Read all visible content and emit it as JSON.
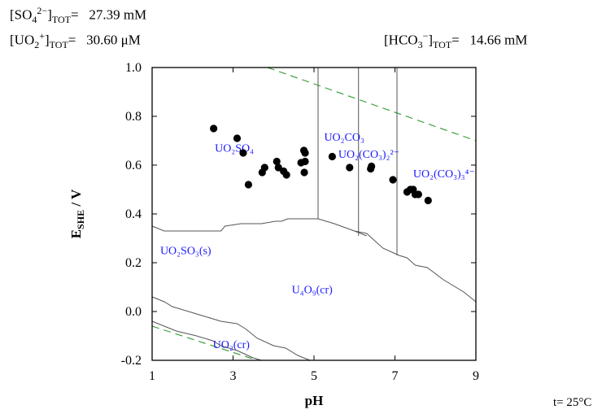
{
  "header": {
    "sulfate_total": "27.39 mM",
    "uranyl_total": "30.60 μM",
    "bicarbonate_total": "14.66 mM",
    "temperature": "25°C"
  },
  "colors": {
    "species_label": "#1a1aff",
    "dashed_water_lines": "#2e9b2e",
    "boundaries": "#555555",
    "points": "#000000"
  },
  "chart_data": {
    "type": "scatter",
    "xlabel": "pH",
    "ylabel": "E_SHE / V",
    "xlim": [
      1,
      9
    ],
    "ylim": [
      -0.2,
      1.0
    ],
    "x_ticks": [
      1,
      3,
      5,
      7,
      9
    ],
    "y_ticks": [
      -0.2,
      0.0,
      0.2,
      0.4,
      0.6,
      0.8,
      1.0
    ],
    "grid": false,
    "points": [
      {
        "x": 2.52,
        "y": 0.75
      },
      {
        "x": 3.1,
        "y": 0.71
      },
      {
        "x": 3.25,
        "y": 0.65
      },
      {
        "x": 3.38,
        "y": 0.52
      },
      {
        "x": 3.72,
        "y": 0.57
      },
      {
        "x": 3.78,
        "y": 0.59
      },
      {
        "x": 4.08,
        "y": 0.615
      },
      {
        "x": 4.12,
        "y": 0.59
      },
      {
        "x": 4.25,
        "y": 0.575
      },
      {
        "x": 4.32,
        "y": 0.56
      },
      {
        "x": 4.68,
        "y": 0.61
      },
      {
        "x": 4.75,
        "y": 0.66
      },
      {
        "x": 4.78,
        "y": 0.65
      },
      {
        "x": 4.78,
        "y": 0.615
      },
      {
        "x": 4.76,
        "y": 0.57
      },
      {
        "x": 5.45,
        "y": 0.635
      },
      {
        "x": 5.88,
        "y": 0.59
      },
      {
        "x": 6.4,
        "y": 0.585
      },
      {
        "x": 6.42,
        "y": 0.595
      },
      {
        "x": 6.95,
        "y": 0.54
      },
      {
        "x": 7.3,
        "y": 0.49
      },
      {
        "x": 7.38,
        "y": 0.5
      },
      {
        "x": 7.45,
        "y": 0.5
      },
      {
        "x": 7.5,
        "y": 0.48
      },
      {
        "x": 7.58,
        "y": 0.48
      },
      {
        "x": 7.82,
        "y": 0.455
      }
    ],
    "region_labels": [
      {
        "text": "UO₂SO₄",
        "x": 2.55,
        "y": 0.655
      },
      {
        "text": "UO₂CO₃",
        "x": 5.25,
        "y": 0.7
      },
      {
        "text": "UO₂(CO₃)₂²⁻",
        "x": 5.6,
        "y": 0.63
      },
      {
        "text": "UO₂(CO₃)₃⁴⁻",
        "x": 7.45,
        "y": 0.55
      },
      {
        "text": "UO₂SO₃(s)",
        "x": 1.2,
        "y": 0.235
      },
      {
        "text": "U₄O₉(cr)",
        "x": 4.45,
        "y": 0.075
      },
      {
        "text": "UO₂(cr)",
        "x": 2.5,
        "y": -0.15
      }
    ],
    "boundaries": [
      [
        [
          1,
          0.35
        ],
        [
          1.3,
          0.33
        ],
        [
          2.7,
          0.33
        ],
        [
          2.8,
          0.35
        ],
        [
          3.2,
          0.36
        ],
        [
          3.7,
          0.36
        ],
        [
          4.05,
          0.37
        ],
        [
          4.2,
          0.37
        ],
        [
          4.35,
          0.38
        ],
        [
          5.1,
          0.38
        ],
        [
          5.5,
          0.36
        ],
        [
          6.0,
          0.33
        ],
        [
          6.3,
          0.32
        ],
        [
          6.7,
          0.26
        ],
        [
          7.1,
          0.23
        ],
        [
          7.3,
          0.22
        ],
        [
          7.5,
          0.19
        ],
        [
          7.8,
          0.18
        ],
        [
          8.2,
          0.13
        ],
        [
          8.7,
          0.08
        ],
        [
          9.0,
          0.04
        ]
      ],
      [
        [
          1,
          0.06
        ],
        [
          1.3,
          0.04
        ],
        [
          1.5,
          0.02
        ],
        [
          1.9,
          0.0
        ],
        [
          2.3,
          -0.02
        ],
        [
          2.7,
          -0.04
        ],
        [
          3.1,
          -0.05
        ],
        [
          3.3,
          -0.07
        ],
        [
          3.6,
          -0.11
        ],
        [
          4.0,
          -0.14
        ],
        [
          4.3,
          -0.15
        ],
        [
          4.6,
          -0.18
        ],
        [
          4.9,
          -0.2
        ]
      ],
      [
        [
          1,
          -0.04
        ],
        [
          1.3,
          -0.06
        ],
        [
          1.6,
          -0.08
        ],
        [
          2.1,
          -0.1
        ],
        [
          2.5,
          -0.12
        ],
        [
          2.7,
          -0.14
        ],
        [
          3.1,
          -0.16
        ],
        [
          3.5,
          -0.19
        ],
        [
          3.7,
          -0.2
        ]
      ],
      [
        [
          5.1,
          1.0
        ],
        [
          5.1,
          0.38
        ]
      ],
      [
        [
          6.1,
          1.0
        ],
        [
          6.1,
          0.31
        ]
      ],
      [
        [
          7.05,
          1.0
        ],
        [
          7.05,
          0.23
        ]
      ],
      [
        [
          6.0,
          0.33
        ],
        [
          6.3,
          0.31
        ]
      ]
    ],
    "water_lines": [
      [
        [
          3.85,
          1.0
        ],
        [
          9.0,
          0.7
        ]
      ],
      [
        [
          1.0,
          -0.06
        ],
        [
          3.6,
          -0.2
        ]
      ]
    ]
  }
}
